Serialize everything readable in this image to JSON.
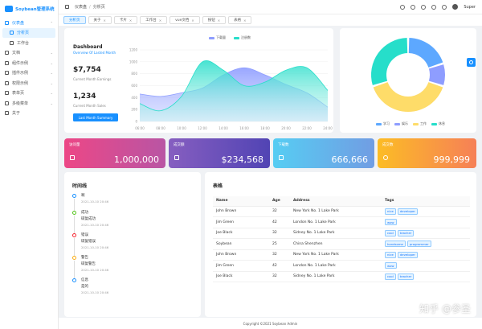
{
  "app": {
    "title": "Soybean管理系统"
  },
  "sidebar": {
    "items": [
      {
        "label": "仪表盘",
        "icon": "dashboard-icon",
        "active": true
      },
      {
        "label": "分析页",
        "icon": "analysis-icon",
        "selected": true
      },
      {
        "label": "工作台",
        "icon": "workbench-icon"
      },
      {
        "label": "文档",
        "icon": "doc-icon"
      },
      {
        "label": "组件示例",
        "icon": "component-icon"
      },
      {
        "label": "插件示例",
        "icon": "plugin-icon"
      },
      {
        "label": "权限示例",
        "icon": "auth-icon"
      },
      {
        "label": "表单页",
        "icon": "form-icon"
      },
      {
        "label": "多级菜单",
        "icon": "menu-icon"
      },
      {
        "label": "关于",
        "icon": "about-icon"
      }
    ]
  },
  "header": {
    "breadcrumb": [
      "仪表盘",
      "分析页"
    ],
    "username": "Super"
  },
  "tabs": [
    {
      "label": "分析页",
      "active": true
    },
    {
      "label": "关于"
    },
    {
      "label": "卡片"
    },
    {
      "label": "工作台"
    },
    {
      "label": "vue文档"
    },
    {
      "label": "按钮"
    },
    {
      "label": "表格"
    }
  ],
  "dashboard": {
    "title": "Dashboard",
    "subtitle": "Overview Of Lasted Month",
    "earnings_value": "$7,754",
    "earnings_label": "Current Month Earnings",
    "sales_value": "1,234",
    "sales_label": "Current Month Sales",
    "button": "Last Month Summary"
  },
  "line_chart_legend": [
    {
      "label": "下载量",
      "color": "#8e9dff"
    },
    {
      "label": "注册数",
      "color": "#26deca"
    }
  ],
  "chart_data": [
    {
      "type": "area",
      "categories": [
        "06:00",
        "08:00",
        "10:00",
        "12:00",
        "14:00",
        "16:00",
        "18:00",
        "20:00",
        "22:00",
        "24:00"
      ],
      "series": [
        {
          "name": "下载量",
          "values": [
            460,
            420,
            480,
            560,
            780,
            900,
            780,
            620,
            480,
            240
          ]
        },
        {
          "name": "注册数",
          "values": [
            300,
            180,
            420,
            1000,
            860,
            600,
            660,
            860,
            900,
            520
          ]
        }
      ],
      "ylim": [
        0,
        1200
      ],
      "yticks": [
        0,
        200,
        400,
        600,
        800,
        1000,
        1200
      ]
    },
    {
      "type": "pie",
      "series": [
        {
          "name": "学习",
          "value": 20
        },
        {
          "name": "娱乐",
          "value": 10
        },
        {
          "name": "工作",
          "value": 40
        },
        {
          "name": "休息",
          "value": 30
        }
      ],
      "colors": [
        "#5da8ff",
        "#8e9dff",
        "#fedc69",
        "#26deca"
      ]
    }
  ],
  "stats": [
    {
      "title": "访问量",
      "value": "1,000,000",
      "from": "#ec4786",
      "to": "#b955a4"
    },
    {
      "title": "成交额",
      "value": "$234,568",
      "from": "#865ec0",
      "to": "#5144b4"
    },
    {
      "title": "下载数",
      "value": "666,666",
      "from": "#56cdf3",
      "to": "#719de3"
    },
    {
      "title": "成交数",
      "value": "999,999",
      "from": "#fcbc25",
      "to": "#f68057"
    }
  ],
  "timeline": {
    "title": "时间线",
    "items": [
      {
        "text": "啊",
        "sub": "",
        "time": "2021-10-10 20:46",
        "color": "#1890ff"
      },
      {
        "text": "成功",
        "sub": "碳复成功",
        "time": "2021-10-10 20:46",
        "color": "#52c41a"
      },
      {
        "text": "错误",
        "sub": "碳复错误",
        "time": "2021-10-10 20:46",
        "color": "#f5222d"
      },
      {
        "text": "警告",
        "sub": "碳复警告",
        "time": "2021-10-10 20:46",
        "color": "#faad14"
      },
      {
        "text": "信息",
        "sub": "是的",
        "time": "2021-10-10 20:46",
        "color": "#1890ff"
      }
    ]
  },
  "table": {
    "title": "表格",
    "columns": [
      "Name",
      "Age",
      "Address",
      "Tags"
    ],
    "rows": [
      {
        "name": "John Brown",
        "age": "32",
        "address": "New York No. 1 Lake Park",
        "tags": [
          "nice",
          "developer"
        ]
      },
      {
        "name": "Jim Green",
        "age": "42",
        "address": "London No. 1 Lake Park",
        "tags": [
          "wow"
        ]
      },
      {
        "name": "Joe Black",
        "age": "32",
        "address": "Sidney No. 1 Lake Park",
        "tags": [
          "cool",
          "teacher"
        ]
      },
      {
        "name": "Soybean",
        "age": "25",
        "address": "China Shenzhen",
        "tags": [
          "handsome",
          "programmer"
        ]
      },
      {
        "name": "John Brown",
        "age": "32",
        "address": "New York No. 1 Lake Park",
        "tags": [
          "nice",
          "developer"
        ]
      },
      {
        "name": "Jim Green",
        "age": "42",
        "address": "London No. 1 Lake Park",
        "tags": [
          "wow"
        ]
      },
      {
        "name": "Joe Black",
        "age": "32",
        "address": "Sidney No. 1 Lake Park",
        "tags": [
          "cool",
          "teacher"
        ]
      }
    ]
  },
  "footer": {
    "text": "Copyright ©2021 Soybean Admin"
  },
  "watermark": "知乎 @参圣"
}
